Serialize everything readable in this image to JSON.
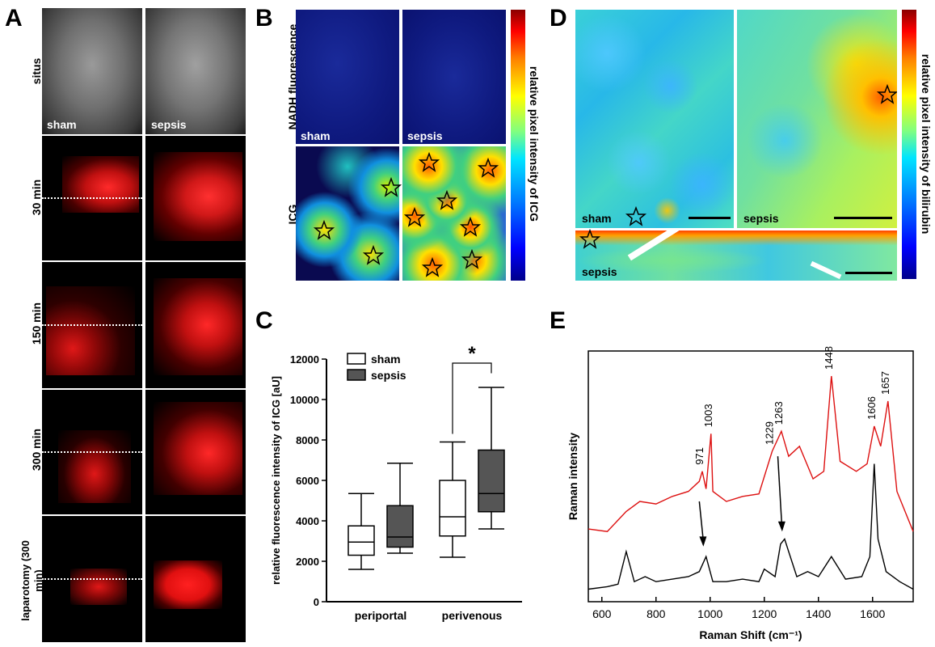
{
  "panel_a": {
    "letter": "A",
    "row_labels": [
      "situs",
      "30 min",
      "150 min",
      "300 min",
      "laparotomy (300 min)"
    ],
    "col_labels": [
      "sham",
      "sepsis"
    ]
  },
  "panel_b": {
    "letter": "B",
    "row_labels": [
      "NADH fluorescence",
      "ICG"
    ],
    "col_labels": [
      "sham",
      "sepsis"
    ],
    "colorbar_label": "relative pixel intensity of ICG"
  },
  "panel_d": {
    "letter": "D",
    "labels": [
      "sham",
      "sepsis",
      "sepsis"
    ],
    "colorbar_label": "relative pixel intensity of bilirubin"
  },
  "panel_c": {
    "letter": "C"
  },
  "panel_e": {
    "letter": "E"
  },
  "chart_data": [
    {
      "type": "box",
      "ylabel": "relative fluorescence intensity of ICG [aU]",
      "ylim": [
        0,
        12000
      ],
      "yticks": [
        "0",
        "2000",
        "4000",
        "6000",
        "8000",
        "10000",
        "12000"
      ],
      "categories": [
        "periportal",
        "perivenous"
      ],
      "legend": [
        "sham",
        "sepsis"
      ],
      "significance": "*",
      "colors": {
        "sham": "#ffffff",
        "sepsis": "#555555"
      },
      "series": [
        {
          "name": "sham",
          "boxes": [
            {
              "min": 1600,
              "q1": 2300,
              "median": 2950,
              "q3": 3750,
              "max": 5350
            },
            {
              "min": 2200,
              "q1": 3250,
              "median": 4200,
              "q3": 6000,
              "max": 7900
            }
          ]
        },
        {
          "name": "sepsis",
          "boxes": [
            {
              "min": 2400,
              "q1": 2700,
              "median": 3200,
              "q3": 4750,
              "max": 6850
            },
            {
              "min": 3600,
              "q1": 4450,
              "median": 5350,
              "q3": 7500,
              "max": 10600
            }
          ]
        }
      ]
    },
    {
      "type": "line",
      "xlabel": "Raman Shift (cm⁻¹)",
      "ylabel": "Raman intensity",
      "xlim": [
        550,
        1750
      ],
      "xticks": [
        "600",
        "800",
        "1000",
        "1200",
        "1400",
        "1600"
      ],
      "peak_labels": [
        "971",
        "1003",
        "1229",
        "1263",
        "1448",
        "1606",
        "1657"
      ],
      "colors": {
        "upper": "#dd1111",
        "lower": "#000000"
      },
      "series": [
        {
          "name": "upper",
          "x": [
            550,
            620,
            690,
            740,
            800,
            860,
            920,
            960,
            971,
            985,
            1003,
            1010,
            1060,
            1120,
            1180,
            1229,
            1263,
            1290,
            1330,
            1380,
            1420,
            1448,
            1480,
            1540,
            1580,
            1606,
            1630,
            1657,
            1690,
            1750
          ],
          "y": [
            0.29,
            0.28,
            0.36,
            0.4,
            0.39,
            0.42,
            0.44,
            0.48,
            0.52,
            0.45,
            0.67,
            0.44,
            0.4,
            0.42,
            0.43,
            0.6,
            0.68,
            0.58,
            0.62,
            0.49,
            0.52,
            0.9,
            0.56,
            0.52,
            0.55,
            0.7,
            0.62,
            0.8,
            0.44,
            0.28
          ]
        },
        {
          "name": "lower",
          "x": [
            550,
            620,
            660,
            690,
            720,
            760,
            800,
            860,
            920,
            960,
            985,
            1010,
            1060,
            1120,
            1180,
            1200,
            1240,
            1260,
            1275,
            1290,
            1320,
            1360,
            1400,
            1448,
            1500,
            1560,
            1590,
            1606,
            1620,
            1650,
            1700,
            1750
          ],
          "y": [
            0.05,
            0.06,
            0.07,
            0.2,
            0.08,
            0.1,
            0.08,
            0.09,
            0.1,
            0.12,
            0.18,
            0.08,
            0.08,
            0.09,
            0.08,
            0.13,
            0.1,
            0.23,
            0.25,
            0.2,
            0.1,
            0.12,
            0.1,
            0.18,
            0.09,
            0.1,
            0.18,
            0.55,
            0.25,
            0.12,
            0.08,
            0.05
          ]
        }
      ]
    }
  ]
}
